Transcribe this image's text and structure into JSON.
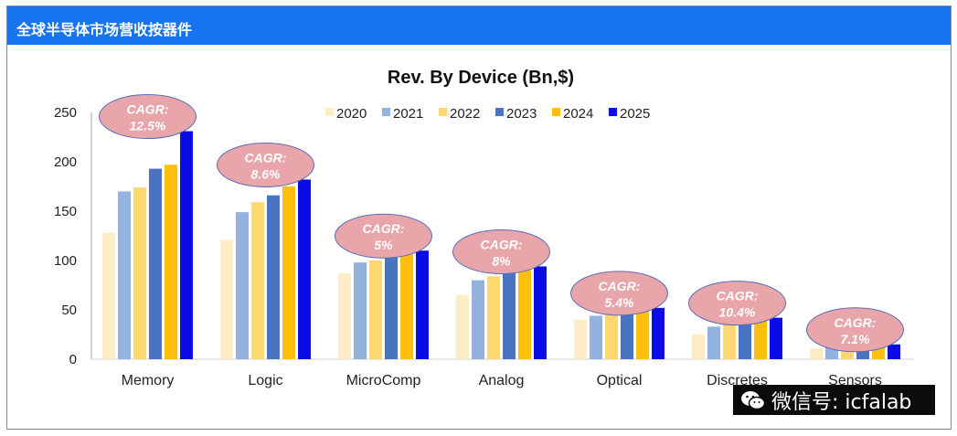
{
  "header": {
    "title": "全球半导体市场营收按器件"
  },
  "watermark": {
    "text": "微信号: icfalab",
    "icon": "wechat-icon"
  },
  "colors": {
    "header_bg": "#1675ee",
    "bubble": "#e8a6aa",
    "bubble_stroke": "#5b6ab8",
    "series": [
      "#fdedc6",
      "#93b2dd",
      "#fdd76f",
      "#4874c2",
      "#fdbf0b",
      "#0a0be6"
    ]
  },
  "chart_data": {
    "type": "bar",
    "title": "Rev. By Device (Bn,$)",
    "xlabel": "",
    "ylabel": "",
    "ylim": [
      0,
      250
    ],
    "yticks": [
      0,
      50,
      100,
      150,
      200,
      250
    ],
    "grid": false,
    "legend_position": "top",
    "categories": [
      "Memory",
      "Logic",
      "MicroComp",
      "Analog",
      "Optical",
      "Discretes",
      "Sensors"
    ],
    "series": [
      {
        "name": "2020",
        "values": [
          128,
          121,
          87,
          65,
          40,
          25,
          11
        ]
      },
      {
        "name": "2021",
        "values": [
          170,
          149,
          98,
          80,
          44,
          33,
          12
        ]
      },
      {
        "name": "2022",
        "values": [
          174,
          159,
          100,
          84,
          45,
          36,
          14
        ]
      },
      {
        "name": "2023",
        "values": [
          193,
          166,
          103,
          87,
          47,
          38,
          15
        ]
      },
      {
        "name": "2024",
        "values": [
          197,
          175,
          106,
          91,
          49,
          40,
          15
        ]
      },
      {
        "name": "2025",
        "values": [
          231,
          182,
          110,
          94,
          52,
          42,
          15
        ]
      }
    ],
    "annotations": [
      {
        "category": "Memory",
        "text": [
          "CAGR:",
          "12.5%"
        ]
      },
      {
        "category": "Logic",
        "text": [
          "CAGR:",
          "8.6%"
        ]
      },
      {
        "category": "MicroComp",
        "text": [
          "CAGR:",
          "5%"
        ]
      },
      {
        "category": "Analog",
        "text": [
          "CAGR:",
          "8%"
        ]
      },
      {
        "category": "Optical",
        "text": [
          "CAGR:",
          "5.4%"
        ]
      },
      {
        "category": "Discretes",
        "text": [
          "CAGR:",
          "10.4%"
        ]
      },
      {
        "category": "Sensors",
        "text": [
          "CAGR:",
          "7.1%"
        ]
      }
    ]
  }
}
